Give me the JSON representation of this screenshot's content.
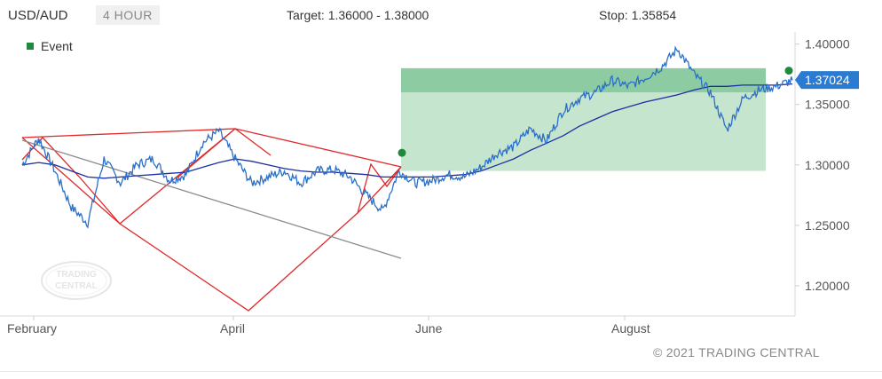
{
  "header": {
    "symbol": "USD/AUD",
    "timeframe": "4 HOUR",
    "target": "Target: 1.36000 - 1.38000",
    "stop": "Stop: 1.35854"
  },
  "legend": {
    "event_label": "Event",
    "event_color": "#1f8a3c"
  },
  "watermark": {
    "line1": "TRADING",
    "line2": "CENTRAL"
  },
  "copyright": "© 2021 TRADING CENTRAL",
  "colors": {
    "price": "#2a6fc9",
    "moving_average": "#1c2fa0",
    "pattern": "#e0292b",
    "trendline": "#8c8c8c",
    "target_zone": "#5cb67a",
    "projection_zone": "#c6e5cf",
    "event": "#1f8a3c",
    "price_tag": "#2a7bd1"
  },
  "chart_data": {
    "type": "line",
    "ylim": [
      1.175,
      1.41
    ],
    "y_ticks": [
      "1.40000",
      "1.35000",
      "1.30000",
      "1.25000",
      "1.20000"
    ],
    "y_tick_values": [
      1.4,
      1.35,
      1.3,
      1.25,
      1.2
    ],
    "x_labels": [
      "February",
      "April",
      "June",
      "August"
    ],
    "current_price": "1.37024",
    "current_value": 1.37024,
    "series": [
      {
        "name": "price",
        "values": [
          1.3,
          1.322,
          1.295,
          1.265,
          1.252,
          1.305,
          1.285,
          1.3,
          1.305,
          1.287,
          1.292,
          1.318,
          1.328,
          1.305,
          1.285,
          1.29,
          1.295,
          1.285,
          1.295,
          1.296,
          1.29,
          1.275,
          1.262,
          1.295,
          1.285,
          1.287,
          1.292,
          1.29,
          1.298,
          1.31,
          1.315,
          1.33,
          1.32,
          1.345,
          1.355,
          1.36,
          1.37,
          1.365,
          1.372,
          1.381,
          1.396,
          1.375,
          1.36,
          1.329,
          1.355,
          1.362,
          1.365,
          1.37
        ]
      },
      {
        "name": "moving average",
        "values": [
          1.3,
          1.302,
          1.3,
          1.295,
          1.29,
          1.289,
          1.29,
          1.291,
          1.292,
          1.293,
          1.294,
          1.298,
          1.302,
          1.305,
          1.303,
          1.3,
          1.297,
          1.295,
          1.294,
          1.294,
          1.293,
          1.292,
          1.29,
          1.29,
          1.29,
          1.29,
          1.291,
          1.292,
          1.295,
          1.3,
          1.305,
          1.312,
          1.318,
          1.324,
          1.332,
          1.338,
          1.344,
          1.348,
          1.352,
          1.355,
          1.358,
          1.362,
          1.365,
          1.365,
          1.366,
          1.366,
          1.366,
          1.367
        ]
      }
    ],
    "annotations": [
      {
        "type": "target_zone",
        "from": 1.36,
        "to": 1.38
      },
      {
        "type": "projection_zone",
        "from": 1.295,
        "to": 1.36
      },
      {
        "type": "event",
        "value": 1.31
      },
      {
        "type": "event",
        "value": 1.378
      }
    ],
    "grid": false
  }
}
